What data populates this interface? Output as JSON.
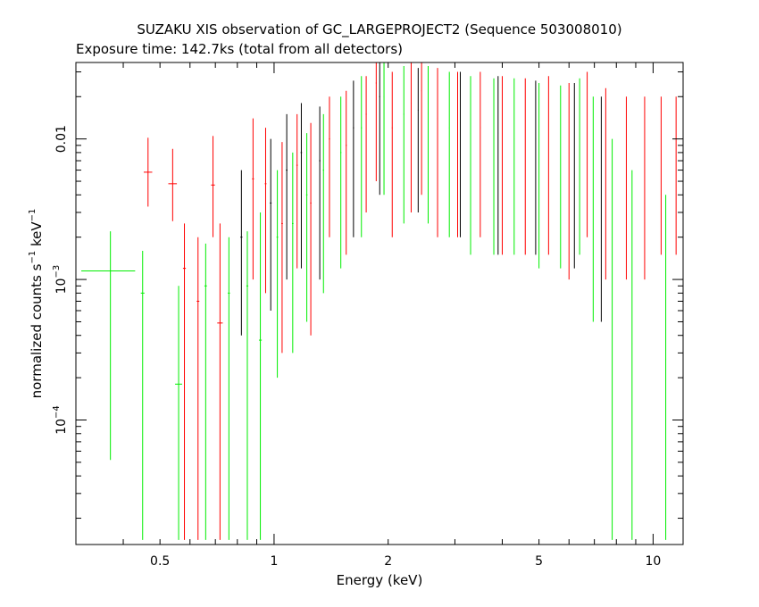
{
  "chart_data": {
    "type": "scatter",
    "title": "SUZAKU XIS observation of GC_LARGEPROJECT2 (Sequence 503008010)",
    "subtitle": "Exposure time: 142.7ks (total from all detectors)",
    "xlabel": "Energy (keV)",
    "ylabel": "normalized counts s-1 keV-1",
    "ylabel_parts": {
      "main": "normalized counts s",
      "sup1": "−1",
      "mid": " keV",
      "sup2": "−1"
    },
    "x_scale": "log",
    "y_scale": "log",
    "xlim": [
      0.3,
      12.0
    ],
    "ylim": [
      1.3e-05,
      0.035
    ],
    "x_ticks": [
      {
        "value": 0.5,
        "label": "0.5"
      },
      {
        "value": 1,
        "label": "1"
      },
      {
        "value": 2,
        "label": "2"
      },
      {
        "value": 5,
        "label": "5"
      },
      {
        "value": 10,
        "label": "10"
      }
    ],
    "y_ticks": [
      {
        "value": 0.01,
        "label": "0.01",
        "base": "",
        "exp": ""
      },
      {
        "value": 0.001,
        "label": "",
        "base": "10",
        "exp": "−3"
      },
      {
        "value": 0.0001,
        "label": "",
        "base": "10",
        "exp": "−4"
      }
    ],
    "grid": false,
    "series": [
      {
        "color": "#ff0000",
        "points": [
          {
            "x": 0.465,
            "y": 0.0058,
            "xerr": 0.012,
            "ylo": 0.0033,
            "yhi": 0.0102
          },
          {
            "x": 0.54,
            "y": 0.0048,
            "xerr": 0.014,
            "ylo": 0.0026,
            "yhi": 0.0085
          },
          {
            "x": 0.58,
            "y": 0.0012,
            "xerr": 0.005,
            "ylo": 1.4e-05,
            "yhi": 0.0025
          },
          {
            "x": 0.63,
            "y": 0.0007,
            "xerr": 0.005,
            "ylo": 1.4e-05,
            "yhi": 0.002
          },
          {
            "x": 0.69,
            "y": 0.0047,
            "xerr": 0.008,
            "ylo": 0.002,
            "yhi": 0.0105
          },
          {
            "x": 0.72,
            "y": 0.00049,
            "xerr": 0.012,
            "ylo": 1.4e-05,
            "yhi": 0.0025
          },
          {
            "x": 0.88,
            "y": 0.0052,
            "xerr": 0.005,
            "ylo": 0.001,
            "yhi": 0.014
          },
          {
            "x": 0.95,
            "y": 0.0048,
            "xerr": 0.005,
            "ylo": 0.0008,
            "yhi": 0.012
          },
          {
            "x": 1.05,
            "y": 0.0025,
            "xerr": 0.005,
            "ylo": 0.0003,
            "yhi": 0.0095
          },
          {
            "x": 1.15,
            "y": 0.0065,
            "xerr": 0.005,
            "ylo": 0.0012,
            "yhi": 0.015
          },
          {
            "x": 1.25,
            "y": 0.0035,
            "xerr": 0.005,
            "ylo": 0.0004,
            "yhi": 0.013
          },
          {
            "x": 1.4,
            "y": 0.01,
            "xerr": 0.005,
            "ylo": 0.002,
            "yhi": 0.02
          },
          {
            "x": 1.55,
            "y": 0.009,
            "xerr": 0.005,
            "ylo": 0.0015,
            "yhi": 0.022
          },
          {
            "x": 1.75,
            "y": 0.015,
            "xerr": 0.005,
            "ylo": 0.003,
            "yhi": 0.028
          },
          {
            "x": 1.86,
            "y": 0.025,
            "xerr": 0.005,
            "ylo": 0.005,
            "yhi": 0.035
          },
          {
            "x": 2.05,
            "y": 0.012,
            "xerr": 0.005,
            "ylo": 0.002,
            "yhi": 0.03
          },
          {
            "x": 2.3,
            "y": 0.018,
            "xerr": 0.005,
            "ylo": 0.003,
            "yhi": 0.035
          },
          {
            "x": 2.45,
            "y": 0.022,
            "xerr": 0.005,
            "ylo": 0.004,
            "yhi": 0.035
          },
          {
            "x": 2.7,
            "y": 0.014,
            "xerr": 0.005,
            "ylo": 0.002,
            "yhi": 0.032
          },
          {
            "x": 3.05,
            "y": 0.013,
            "xerr": 0.005,
            "ylo": 0.002,
            "yhi": 0.03
          },
          {
            "x": 3.5,
            "y": 0.012,
            "xerr": 0.005,
            "ylo": 0.002,
            "yhi": 0.03
          },
          {
            "x": 4.0,
            "y": 0.011,
            "xerr": 0.005,
            "ylo": 0.0015,
            "yhi": 0.028
          },
          {
            "x": 4.6,
            "y": 0.01,
            "xerr": 0.005,
            "ylo": 0.0015,
            "yhi": 0.027
          },
          {
            "x": 5.3,
            "y": 0.01,
            "xerr": 0.005,
            "ylo": 0.0015,
            "yhi": 0.028
          },
          {
            "x": 6.0,
            "y": 0.008,
            "xerr": 0.005,
            "ylo": 0.001,
            "yhi": 0.025
          },
          {
            "x": 6.7,
            "y": 0.012,
            "xerr": 0.005,
            "ylo": 0.002,
            "yhi": 0.03
          },
          {
            "x": 7.5,
            "y": 0.007,
            "xerr": 0.005,
            "ylo": 0.001,
            "yhi": 0.023
          },
          {
            "x": 8.5,
            "y": 0.007,
            "xerr": 0.005,
            "ylo": 0.001,
            "yhi": 0.02
          },
          {
            "x": 9.5,
            "y": 0.0065,
            "xerr": 0.005,
            "ylo": 0.001,
            "yhi": 0.02
          },
          {
            "x": 10.5,
            "y": 0.008,
            "xerr": 0.005,
            "ylo": 0.0015,
            "yhi": 0.02
          },
          {
            "x": 11.5,
            "y": 0.008,
            "xerr": 0.005,
            "ylo": 0.0015,
            "yhi": 0.02
          }
        ]
      },
      {
        "color": "#00ee00",
        "points": [
          {
            "x": 0.37,
            "y": 0.00115,
            "xerr": 0.06,
            "ylo": 5.2e-05,
            "yhi": 0.0022
          },
          {
            "x": 0.45,
            "y": 0.0008,
            "xerr": 0.005,
            "ylo": 1.4e-05,
            "yhi": 0.0016
          },
          {
            "x": 0.56,
            "y": 0.00018,
            "xerr": 0.012,
            "ylo": 1.4e-05,
            "yhi": 0.0009
          },
          {
            "x": 0.66,
            "y": 0.0009,
            "xerr": 0.005,
            "ylo": 1.4e-05,
            "yhi": 0.0018
          },
          {
            "x": 0.76,
            "y": 0.0008,
            "xerr": 0.005,
            "ylo": 1.4e-05,
            "yhi": 0.002
          },
          {
            "x": 0.85,
            "y": 0.0009,
            "xerr": 0.005,
            "ylo": 1.4e-05,
            "yhi": 0.0022
          },
          {
            "x": 0.92,
            "y": 0.00037,
            "xerr": 0.008,
            "ylo": 1.4e-05,
            "yhi": 0.003
          },
          {
            "x": 1.02,
            "y": 0.002,
            "xerr": 0.005,
            "ylo": 0.0002,
            "yhi": 0.006
          },
          {
            "x": 1.12,
            "y": 0.0025,
            "xerr": 0.005,
            "ylo": 0.0003,
            "yhi": 0.008
          },
          {
            "x": 1.22,
            "y": 0.004,
            "xerr": 0.005,
            "ylo": 0.0005,
            "yhi": 0.011
          },
          {
            "x": 1.35,
            "y": 0.006,
            "xerr": 0.005,
            "ylo": 0.0008,
            "yhi": 0.015
          },
          {
            "x": 1.5,
            "y": 0.008,
            "xerr": 0.005,
            "ylo": 0.0012,
            "yhi": 0.02
          },
          {
            "x": 1.7,
            "y": 0.012,
            "xerr": 0.005,
            "ylo": 0.002,
            "yhi": 0.028
          },
          {
            "x": 1.95,
            "y": 0.02,
            "xerr": 0.005,
            "ylo": 0.004,
            "yhi": 0.035
          },
          {
            "x": 2.2,
            "y": 0.015,
            "xerr": 0.005,
            "ylo": 0.0025,
            "yhi": 0.033
          },
          {
            "x": 2.55,
            "y": 0.015,
            "xerr": 0.005,
            "ylo": 0.0025,
            "yhi": 0.033
          },
          {
            "x": 2.9,
            "y": 0.012,
            "xerr": 0.005,
            "ylo": 0.002,
            "yhi": 0.03
          },
          {
            "x": 3.3,
            "y": 0.011,
            "xerr": 0.005,
            "ylo": 0.0015,
            "yhi": 0.028
          },
          {
            "x": 3.8,
            "y": 0.01,
            "xerr": 0.005,
            "ylo": 0.0015,
            "yhi": 0.027
          },
          {
            "x": 4.3,
            "y": 0.01,
            "xerr": 0.005,
            "ylo": 0.0015,
            "yhi": 0.027
          },
          {
            "x": 5.0,
            "y": 0.009,
            "xerr": 0.005,
            "ylo": 0.0012,
            "yhi": 0.025
          },
          {
            "x": 5.7,
            "y": 0.0085,
            "xerr": 0.005,
            "ylo": 0.0012,
            "yhi": 0.024
          },
          {
            "x": 6.4,
            "y": 0.01,
            "xerr": 0.005,
            "ylo": 0.0015,
            "yhi": 0.027
          },
          {
            "x": 6.95,
            "y": 0.006,
            "xerr": 0.005,
            "ylo": 0.0005,
            "yhi": 0.02
          },
          {
            "x": 7.8,
            "y": 0.002,
            "xerr": 0.005,
            "ylo": 1.4e-05,
            "yhi": 0.01
          },
          {
            "x": 8.8,
            "y": 0.00035,
            "xerr": 0.01,
            "ylo": 1.4e-05,
            "yhi": 0.006
          },
          {
            "x": 10.8,
            "y": 0.00027,
            "xerr": 0.015,
            "ylo": 1.4e-05,
            "yhi": 0.004
          }
        ]
      },
      {
        "color": "#000000",
        "points": [
          {
            "x": 0.82,
            "y": 0.002,
            "xerr": 0.005,
            "ylo": 0.0004,
            "yhi": 0.006
          },
          {
            "x": 0.98,
            "y": 0.0035,
            "xerr": 0.005,
            "ylo": 0.0006,
            "yhi": 0.01
          },
          {
            "x": 1.08,
            "y": 0.006,
            "xerr": 0.005,
            "ylo": 0.001,
            "yhi": 0.015
          },
          {
            "x": 1.18,
            "y": 0.008,
            "xerr": 0.005,
            "ylo": 0.0012,
            "yhi": 0.018
          },
          {
            "x": 1.32,
            "y": 0.007,
            "xerr": 0.005,
            "ylo": 0.001,
            "yhi": 0.017
          },
          {
            "x": 1.62,
            "y": 0.012,
            "xerr": 0.005,
            "ylo": 0.002,
            "yhi": 0.026
          },
          {
            "x": 1.9,
            "y": 0.02,
            "xerr": 0.005,
            "ylo": 0.004,
            "yhi": 0.035
          },
          {
            "x": 2.4,
            "y": 0.016,
            "xerr": 0.005,
            "ylo": 0.003,
            "yhi": 0.032
          },
          {
            "x": 3.1,
            "y": 0.013,
            "xerr": 0.005,
            "ylo": 0.002,
            "yhi": 0.03
          },
          {
            "x": 3.9,
            "y": 0.011,
            "xerr": 0.005,
            "ylo": 0.0015,
            "yhi": 0.028
          },
          {
            "x": 4.9,
            "y": 0.01,
            "xerr": 0.005,
            "ylo": 0.0015,
            "yhi": 0.026
          },
          {
            "x": 6.2,
            "y": 0.009,
            "xerr": 0.005,
            "ylo": 0.0012,
            "yhi": 0.025
          },
          {
            "x": 7.3,
            "y": 0.006,
            "xerr": 0.005,
            "ylo": 0.0005,
            "yhi": 0.02
          }
        ]
      }
    ]
  }
}
